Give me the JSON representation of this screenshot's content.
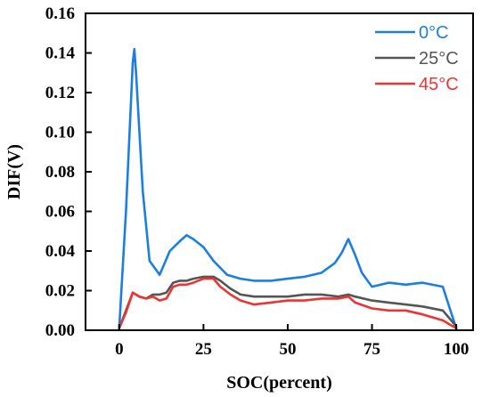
{
  "chart_data": {
    "type": "line",
    "title": "",
    "xlabel": "SOC(percent)",
    "ylabel": "DIF(V)",
    "xlim": [
      -10,
      105
    ],
    "ylim": [
      0,
      0.16
    ],
    "xticks": [
      0,
      25,
      50,
      75,
      100
    ],
    "yticks": [
      0.0,
      0.02,
      0.04,
      0.06,
      0.08,
      0.1,
      0.12,
      0.14,
      0.16
    ],
    "xtick_labels": [
      "0",
      "25",
      "50",
      "75",
      "100"
    ],
    "ytick_labels": [
      "0.00",
      "0.02",
      "0.04",
      "0.06",
      "0.08",
      "0.10",
      "0.12",
      "0.14",
      "0.16"
    ],
    "grid": false,
    "legend_position": "top-right",
    "series": [
      {
        "name": "0°C",
        "color": "#1a7fe0",
        "x": [
          0,
          2,
          4,
          4.5,
          5,
          7,
          9,
          12,
          15,
          18,
          20,
          22,
          25,
          28,
          32,
          36,
          40,
          45,
          50,
          55,
          60,
          64,
          66,
          68,
          70,
          72,
          75,
          80,
          85,
          90,
          96,
          100
        ],
        "y": [
          0.001,
          0.06,
          0.135,
          0.142,
          0.13,
          0.07,
          0.035,
          0.028,
          0.04,
          0.045,
          0.048,
          0.046,
          0.042,
          0.035,
          0.028,
          0.026,
          0.025,
          0.025,
          0.026,
          0.027,
          0.029,
          0.034,
          0.039,
          0.046,
          0.038,
          0.029,
          0.022,
          0.024,
          0.023,
          0.024,
          0.022,
          0.001
        ]
      },
      {
        "name": "25°C",
        "color": "#555555",
        "x": [
          0,
          2,
          4,
          6,
          8,
          10,
          12,
          14,
          16,
          18,
          20,
          22,
          25,
          28,
          30,
          33,
          36,
          40,
          45,
          50,
          55,
          60,
          65,
          68,
          70,
          75,
          80,
          85,
          90,
          96,
          100
        ],
        "y": [
          0.001,
          0.01,
          0.019,
          0.017,
          0.016,
          0.018,
          0.018,
          0.019,
          0.024,
          0.025,
          0.025,
          0.026,
          0.027,
          0.027,
          0.025,
          0.021,
          0.018,
          0.017,
          0.017,
          0.017,
          0.018,
          0.018,
          0.017,
          0.018,
          0.017,
          0.015,
          0.014,
          0.013,
          0.012,
          0.01,
          0.002
        ]
      },
      {
        "name": "45°C",
        "color": "#ee3333",
        "x": [
          0,
          2,
          4,
          6,
          8,
          10,
          12,
          14,
          16,
          18,
          20,
          22,
          25,
          28,
          30,
          33,
          36,
          40,
          45,
          50,
          55,
          60,
          65,
          68,
          70,
          75,
          80,
          85,
          90,
          96,
          100
        ],
        "y": [
          0.001,
          0.009,
          0.019,
          0.017,
          0.016,
          0.017,
          0.015,
          0.016,
          0.022,
          0.023,
          0.023,
          0.024,
          0.026,
          0.026,
          0.022,
          0.018,
          0.015,
          0.013,
          0.014,
          0.015,
          0.015,
          0.016,
          0.016,
          0.017,
          0.014,
          0.011,
          0.01,
          0.01,
          0.008,
          0.005,
          0.001
        ]
      }
    ]
  }
}
